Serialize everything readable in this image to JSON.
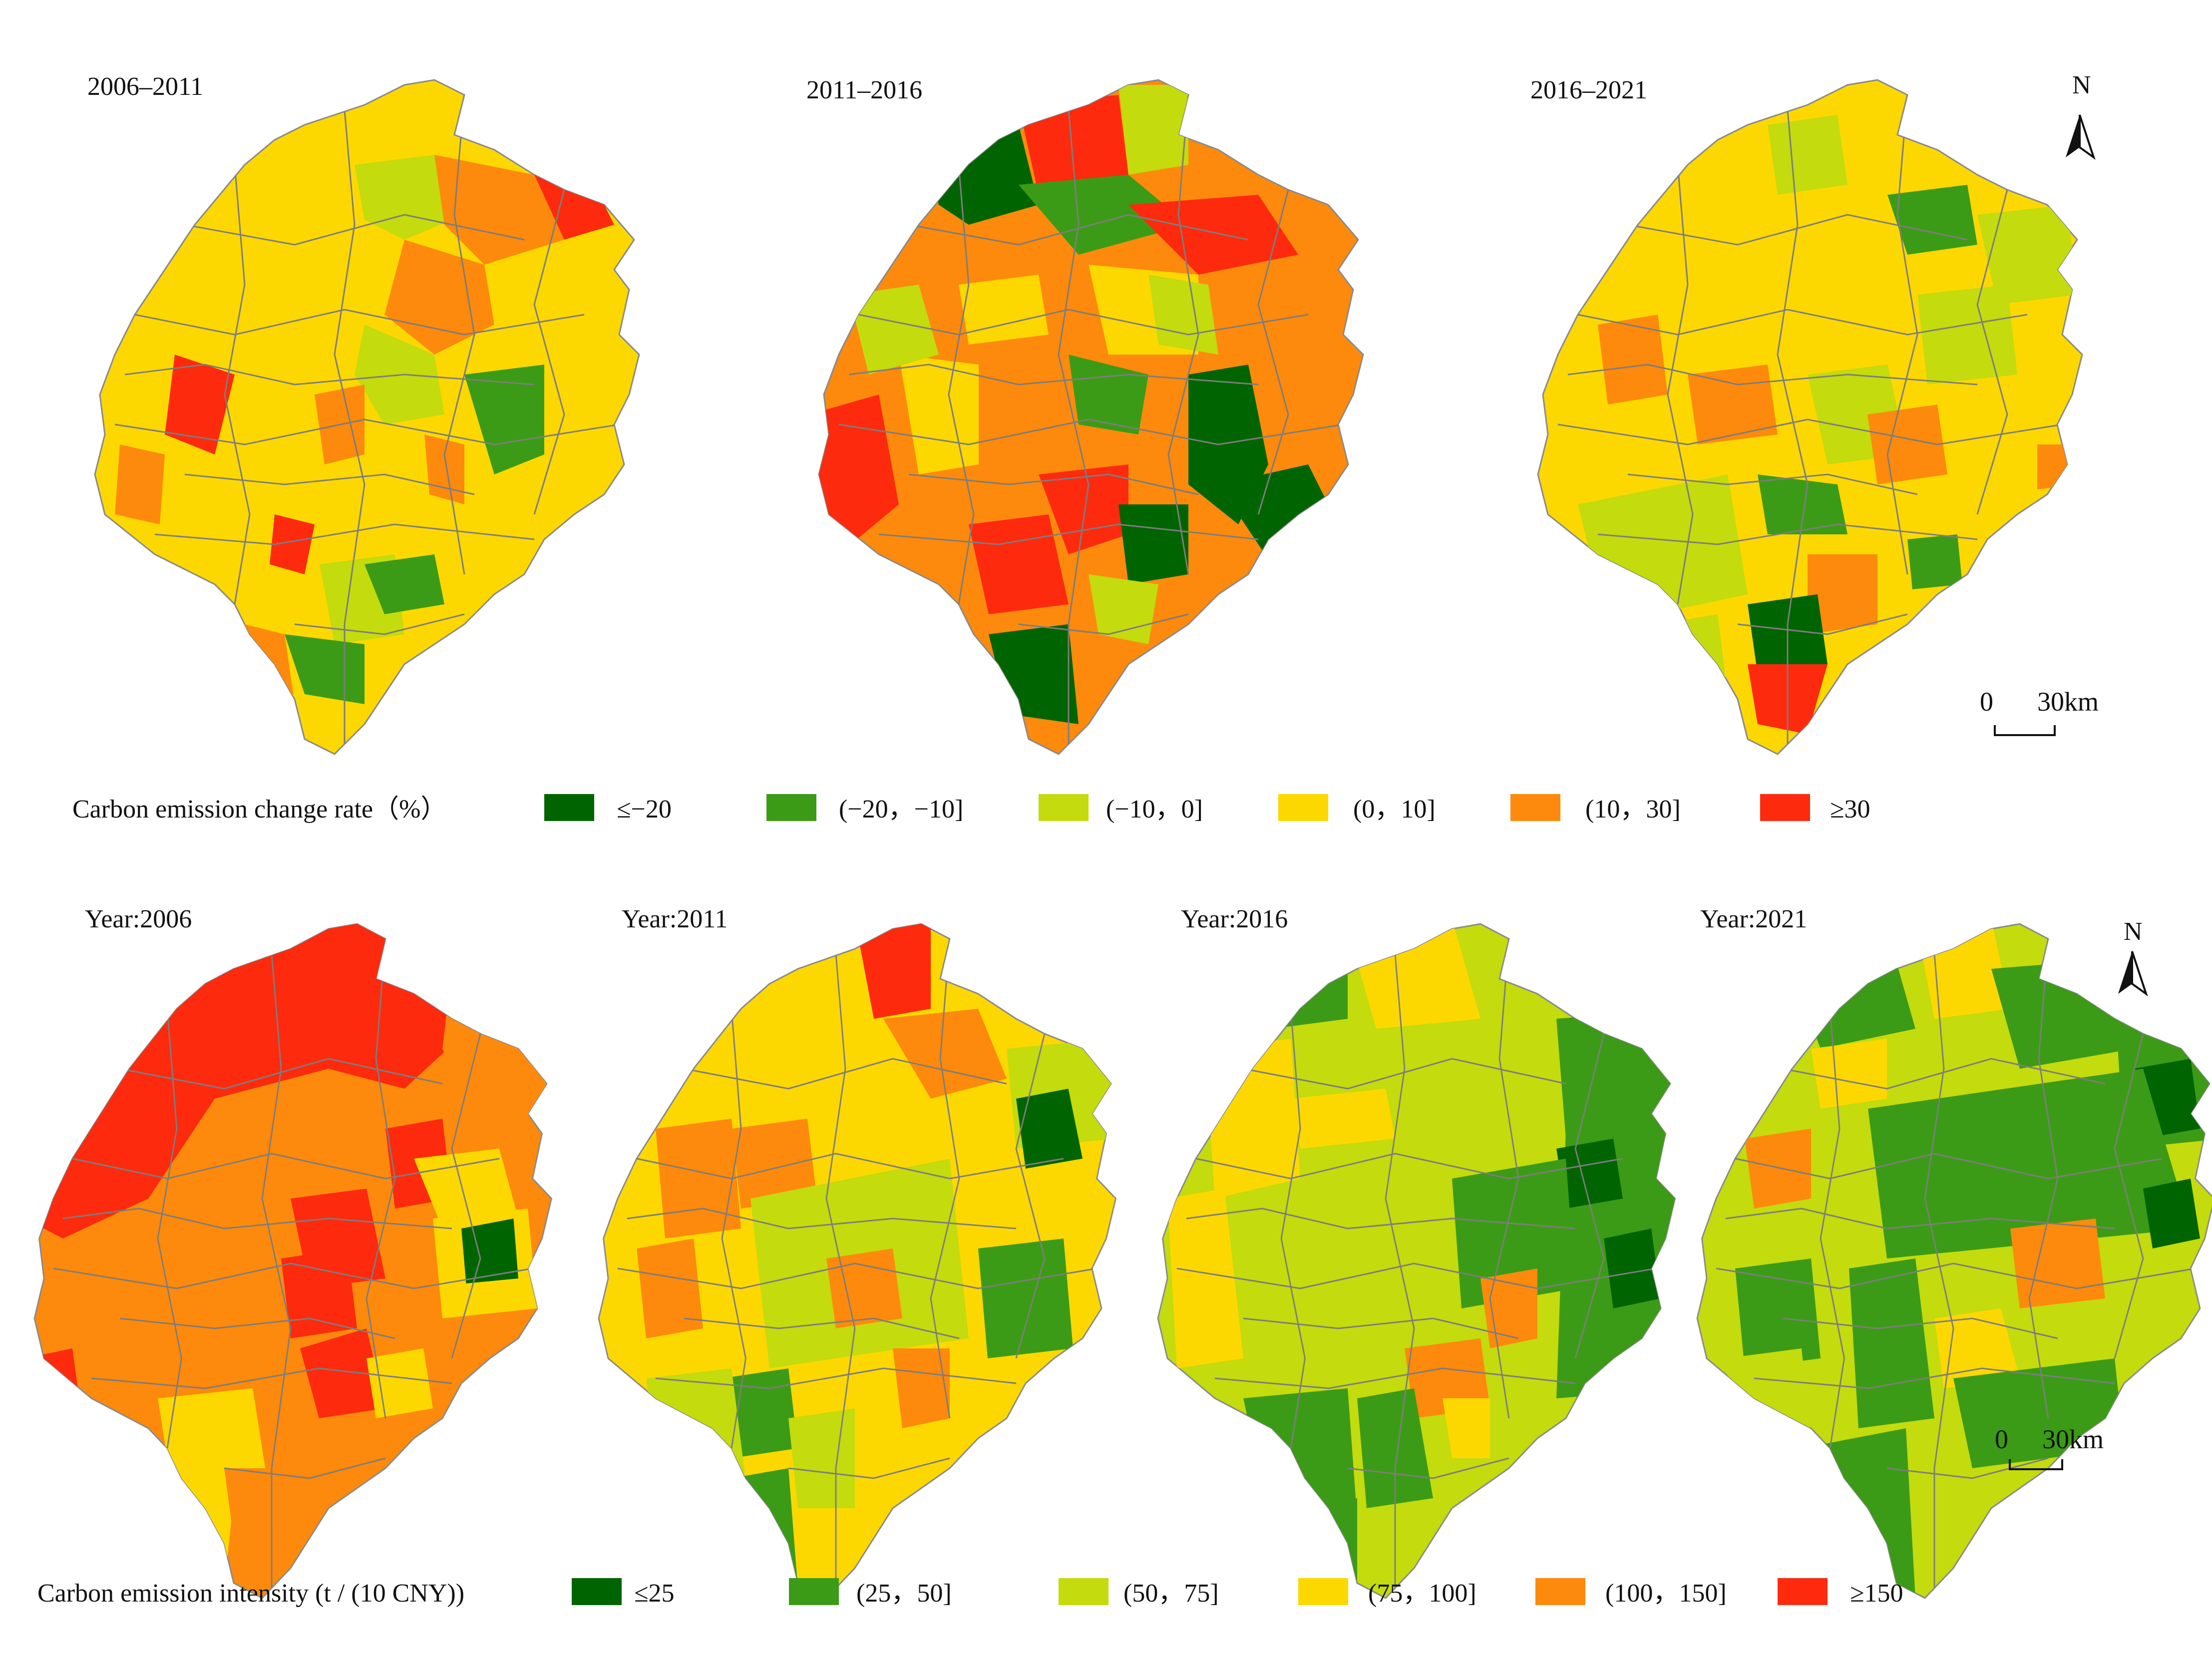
{
  "colors": {
    "dark_green": "#006400",
    "green": "#3c9b16",
    "yellow_green": "#c4db0d",
    "yellow": "#fdd800",
    "orange": "#fd8a0c",
    "red": "#fd2a0e",
    "boundary": "#8a8a8a"
  },
  "top_row": {
    "panels": [
      {
        "title": "2006–2011",
        "base": "yellow"
      },
      {
        "title": "2011–2016",
        "base": "orange"
      },
      {
        "title": "2016–2021",
        "base": "yellow"
      }
    ],
    "legend": {
      "title": "Carbon emission change rate（%）",
      "items": [
        {
          "label": "≤−20",
          "color": "dark_green"
        },
        {
          "label": "(−20，−10]",
          "color": "green"
        },
        {
          "label": "(−10，0]",
          "color": "yellow_green"
        },
        {
          "label": "(0，10]",
          "color": "yellow"
        },
        {
          "label": "(10，30]",
          "color": "orange"
        },
        {
          "label": "≥30",
          "color": "red"
        }
      ]
    },
    "north_label": "N",
    "scale": {
      "zero": "0",
      "value": "30km"
    }
  },
  "bottom_row": {
    "panels": [
      {
        "title": "Year:2006",
        "base": "orange"
      },
      {
        "title": "Year:2011",
        "base": "yellow"
      },
      {
        "title": "Year:2016",
        "base": "yellow_green"
      },
      {
        "title": "Year:2021",
        "base": "yellow_green"
      }
    ],
    "legend": {
      "title": "Carbon emission intensity (t / (10      CNY))",
      "items": [
        {
          "label": "≤25",
          "color": "dark_green"
        },
        {
          "label": "(25，50]",
          "color": "green"
        },
        {
          "label": "(50，75]",
          "color": "yellow_green"
        },
        {
          "label": "(75，100]",
          "color": "yellow"
        },
        {
          "label": "(100，150]",
          "color": "orange"
        },
        {
          "label": "≥150",
          "color": "red"
        }
      ]
    },
    "north_label": "N",
    "scale": {
      "zero": "0",
      "value": "30km"
    }
  }
}
